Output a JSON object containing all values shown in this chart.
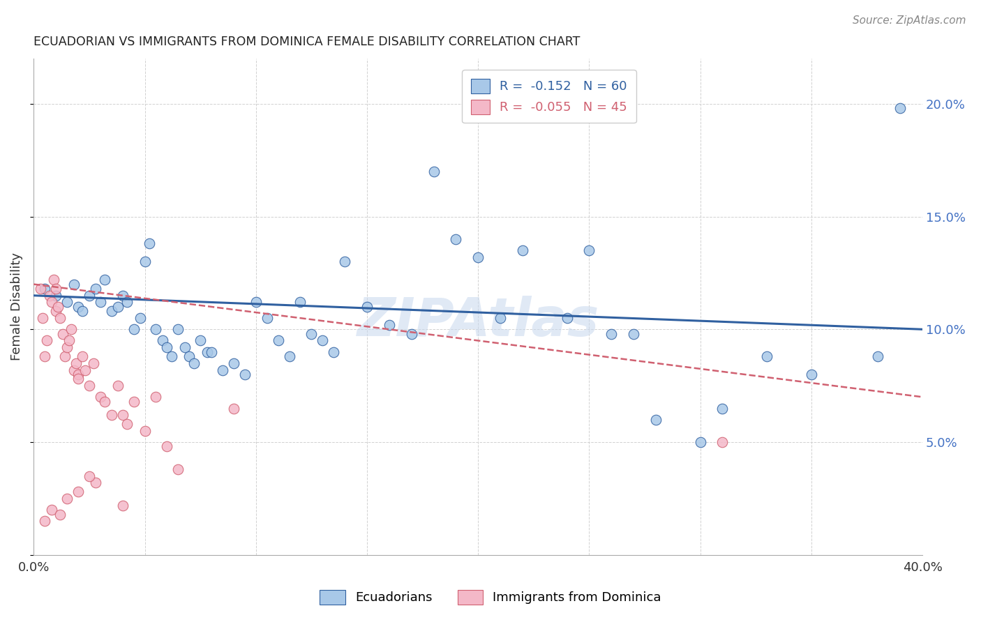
{
  "title": "ECUADORIAN VS IMMIGRANTS FROM DOMINICA FEMALE DISABILITY CORRELATION CHART",
  "source": "Source: ZipAtlas.com",
  "xlabel": "",
  "ylabel": "Female Disability",
  "xlim": [
    0.0,
    0.4
  ],
  "ylim": [
    0.0,
    0.22
  ],
  "xticks": [
    0.0,
    0.05,
    0.1,
    0.15,
    0.2,
    0.25,
    0.3,
    0.35,
    0.4
  ],
  "yticks": [
    0.0,
    0.05,
    0.1,
    0.15,
    0.2
  ],
  "legend_labels": [
    "Ecuadorians",
    "Immigrants from Dominica"
  ],
  "R_blue": -0.152,
  "N_blue": 60,
  "R_pink": -0.055,
  "N_pink": 45,
  "blue_color": "#a8c8e8",
  "pink_color": "#f4b8c8",
  "blue_line_color": "#3060a0",
  "pink_line_color": "#d06070",
  "watermark": "ZIPAtlas",
  "blue_scatter_x": [
    0.005,
    0.01,
    0.015,
    0.018,
    0.02,
    0.022,
    0.025,
    0.028,
    0.03,
    0.032,
    0.035,
    0.038,
    0.04,
    0.042,
    0.045,
    0.048,
    0.05,
    0.052,
    0.055,
    0.058,
    0.06,
    0.062,
    0.065,
    0.068,
    0.07,
    0.072,
    0.075,
    0.078,
    0.08,
    0.085,
    0.09,
    0.095,
    0.1,
    0.105,
    0.11,
    0.115,
    0.12,
    0.125,
    0.13,
    0.135,
    0.14,
    0.15,
    0.16,
    0.17,
    0.18,
    0.19,
    0.2,
    0.21,
    0.22,
    0.24,
    0.25,
    0.26,
    0.27,
    0.28,
    0.3,
    0.31,
    0.33,
    0.35,
    0.38,
    0.39
  ],
  "blue_scatter_y": [
    0.118,
    0.115,
    0.112,
    0.12,
    0.11,
    0.108,
    0.115,
    0.118,
    0.112,
    0.122,
    0.108,
    0.11,
    0.115,
    0.112,
    0.1,
    0.105,
    0.13,
    0.138,
    0.1,
    0.095,
    0.092,
    0.088,
    0.1,
    0.092,
    0.088,
    0.085,
    0.095,
    0.09,
    0.09,
    0.082,
    0.085,
    0.08,
    0.112,
    0.105,
    0.095,
    0.088,
    0.112,
    0.098,
    0.095,
    0.09,
    0.13,
    0.11,
    0.102,
    0.098,
    0.17,
    0.14,
    0.132,
    0.105,
    0.135,
    0.105,
    0.135,
    0.098,
    0.098,
    0.06,
    0.05,
    0.065,
    0.088,
    0.08,
    0.088,
    0.198
  ],
  "pink_scatter_x": [
    0.003,
    0.004,
    0.005,
    0.006,
    0.007,
    0.008,
    0.009,
    0.01,
    0.01,
    0.011,
    0.012,
    0.013,
    0.014,
    0.015,
    0.016,
    0.017,
    0.018,
    0.019,
    0.02,
    0.02,
    0.022,
    0.023,
    0.025,
    0.027,
    0.03,
    0.032,
    0.035,
    0.038,
    0.04,
    0.042,
    0.045,
    0.05,
    0.055,
    0.06,
    0.065,
    0.028,
    0.015,
    0.008,
    0.012,
    0.005,
    0.02,
    0.025,
    0.04,
    0.31,
    0.09
  ],
  "pink_scatter_y": [
    0.118,
    0.105,
    0.088,
    0.095,
    0.115,
    0.112,
    0.122,
    0.118,
    0.108,
    0.11,
    0.105,
    0.098,
    0.088,
    0.092,
    0.095,
    0.1,
    0.082,
    0.085,
    0.08,
    0.078,
    0.088,
    0.082,
    0.075,
    0.085,
    0.07,
    0.068,
    0.062,
    0.075,
    0.062,
    0.058,
    0.068,
    0.055,
    0.07,
    0.048,
    0.038,
    0.032,
    0.025,
    0.02,
    0.018,
    0.015,
    0.028,
    0.035,
    0.022,
    0.05,
    0.065
  ],
  "blue_trend_x0": 0.0,
  "blue_trend_y0": 0.115,
  "blue_trend_x1": 0.4,
  "blue_trend_y1": 0.1,
  "pink_trend_x0": 0.0,
  "pink_trend_y0": 0.12,
  "pink_trend_x1": 0.4,
  "pink_trend_y1": 0.07
}
